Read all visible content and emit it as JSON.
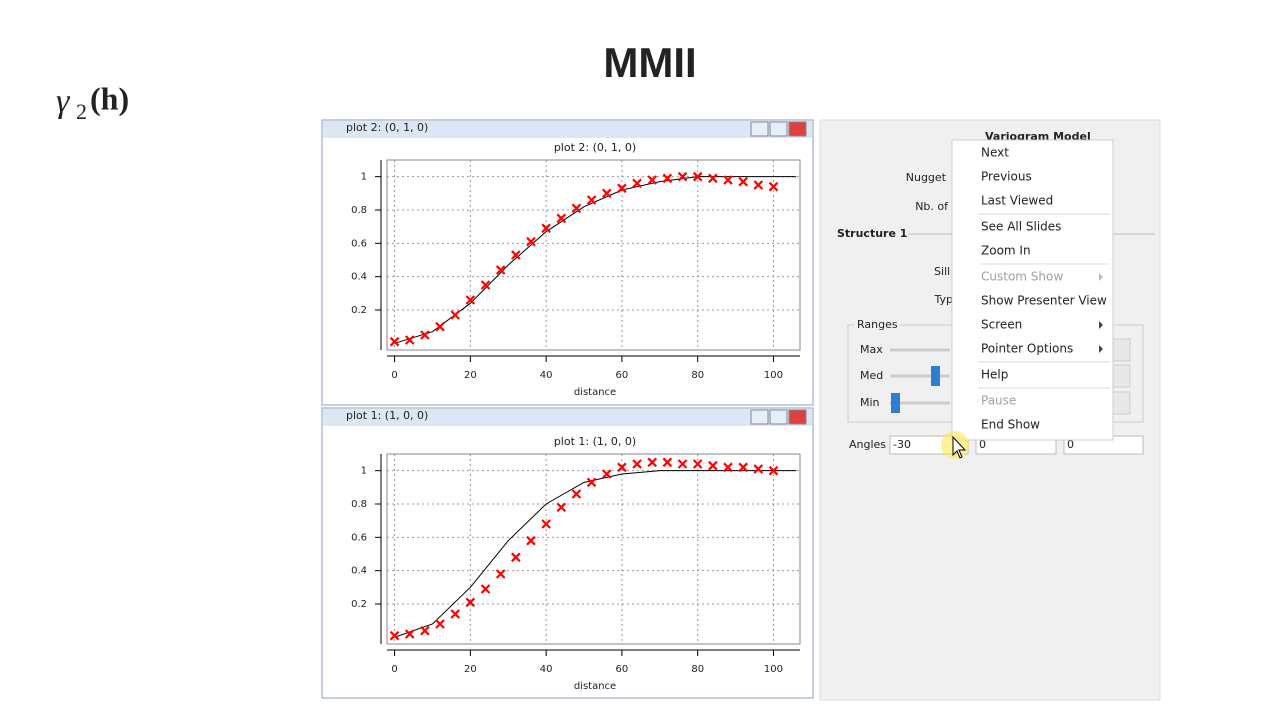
{
  "slide": {
    "title": "MMII",
    "formula": {
      "symbol": "γ",
      "subscript": "2",
      "argument": "(h)"
    }
  },
  "windows": [
    {
      "caption": "plot 2:  (0, 1, 0)"
    },
    {
      "caption": "plot 1:  (1, 0, 0)"
    }
  ],
  "chart_data": [
    {
      "type": "line",
      "title": "plot 2:  (0, 1, 0)",
      "x_label": "distance",
      "xlim": [
        -2,
        107
      ],
      "ylim": [
        -0.04,
        1.1
      ],
      "xticks": [
        0,
        20,
        40,
        60,
        80,
        100
      ],
      "yticks": [
        0.2,
        0.4,
        0.6,
        0.8,
        1
      ],
      "grid": true,
      "series": [
        {
          "style": "line",
          "color": "#000000",
          "x": [
            0,
            10,
            20,
            30,
            40,
            50,
            60,
            70,
            80,
            90,
            100,
            106
          ],
          "values": [
            0,
            0.07,
            0.24,
            0.47,
            0.67,
            0.82,
            0.92,
            0.97,
            1.0,
            1.0,
            1.0,
            1.0
          ]
        },
        {
          "style": "marker",
          "color": "#ff0000",
          "x": [
            0,
            4,
            8,
            12,
            16,
            20,
            24,
            28,
            32,
            36,
            40,
            44,
            48,
            52,
            56,
            60,
            64,
            68,
            72,
            76,
            80,
            84,
            88,
            92,
            96,
            100
          ],
          "values": [
            0.01,
            0.02,
            0.05,
            0.1,
            0.17,
            0.26,
            0.35,
            0.44,
            0.53,
            0.61,
            0.69,
            0.75,
            0.81,
            0.86,
            0.9,
            0.93,
            0.96,
            0.98,
            0.99,
            1.0,
            1.0,
            0.99,
            0.98,
            0.97,
            0.95,
            0.94
          ]
        }
      ]
    },
    {
      "type": "line",
      "title": "plot 1:  (1, 0, 0)",
      "x_label": "distance",
      "xlim": [
        -2,
        107
      ],
      "ylim": [
        -0.04,
        1.1
      ],
      "xticks": [
        0,
        20,
        40,
        60,
        80,
        100
      ],
      "yticks": [
        0.2,
        0.4,
        0.6,
        0.8,
        1
      ],
      "grid": true,
      "series": [
        {
          "style": "line",
          "color": "#000000",
          "x": [
            0,
            10,
            20,
            30,
            40,
            50,
            60,
            70,
            80,
            90,
            100,
            106
          ],
          "values": [
            0,
            0.08,
            0.3,
            0.58,
            0.8,
            0.93,
            0.98,
            1.0,
            1.0,
            1.0,
            1.0,
            1.0
          ]
        },
        {
          "style": "marker",
          "color": "#ff0000",
          "x": [
            0,
            4,
            8,
            12,
            16,
            20,
            24,
            28,
            32,
            36,
            40,
            44,
            48,
            52,
            56,
            60,
            64,
            68,
            72,
            76,
            80,
            84,
            88,
            92,
            96,
            100
          ],
          "values": [
            0.01,
            0.02,
            0.04,
            0.08,
            0.14,
            0.21,
            0.29,
            0.38,
            0.48,
            0.58,
            0.68,
            0.78,
            0.86,
            0.93,
            0.98,
            1.02,
            1.04,
            1.05,
            1.05,
            1.04,
            1.04,
            1.03,
            1.02,
            1.02,
            1.01,
            1.0
          ]
        }
      ]
    }
  ],
  "panel": {
    "heading": "Variogram Model",
    "nugget_label": "Nugget",
    "count_label": "Nb. of",
    "structure_heading": "Structure 1",
    "sill_label": "Sill (",
    "type_label": "Typ",
    "ranges_label": "Ranges",
    "range_rows": [
      "Max",
      "Med",
      "Min"
    ],
    "angles_label": "Angles",
    "angles": [
      "-30",
      "0",
      "0"
    ]
  },
  "menu": {
    "groups": [
      [
        {
          "label": "Next"
        },
        {
          "label": "Previous"
        },
        {
          "label": "Last Viewed"
        }
      ],
      [
        {
          "label": "See All Slides"
        },
        {
          "label": "Zoom In"
        }
      ],
      [
        {
          "label": "Custom Show",
          "disabled": true,
          "submenu": true
        },
        {
          "label": "Show Presenter View"
        },
        {
          "label": "Screen",
          "submenu": true
        },
        {
          "label": "Pointer Options",
          "submenu": true
        }
      ],
      [
        {
          "label": "Help"
        }
      ],
      [
        {
          "label": "Pause",
          "disabled": true
        },
        {
          "label": "End Show"
        }
      ]
    ]
  }
}
